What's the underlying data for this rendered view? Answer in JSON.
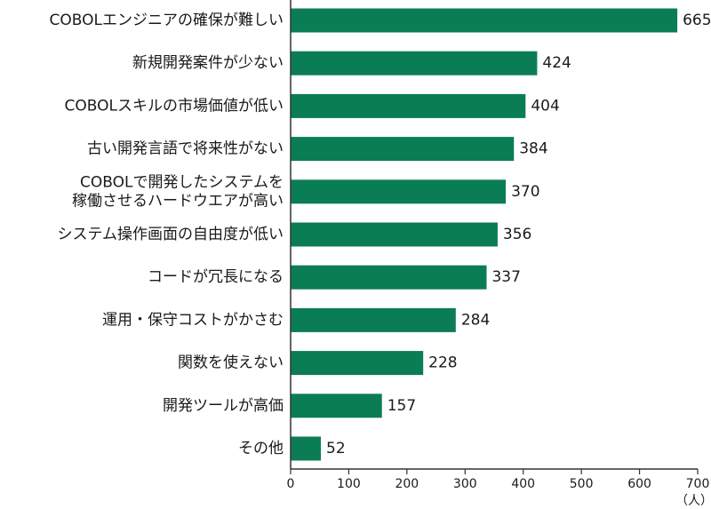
{
  "chart_data": {
    "type": "bar",
    "orientation": "horizontal",
    "categories": [
      [
        "COBOLエンジニアの確保が難しい"
      ],
      [
        "新規開発案件が少ない"
      ],
      [
        "COBOLスキルの市場価値が低い"
      ],
      [
        "古い開発言語で将来性がない"
      ],
      [
        "COBOLで開発したシステムを",
        "稼働させるハードウエアが高い"
      ],
      [
        "システム操作画面の自由度が低い"
      ],
      [
        "コードが冗長になる"
      ],
      [
        "運用・保守コストがかさむ"
      ],
      [
        "関数を使えない"
      ],
      [
        "開発ツールが高価"
      ],
      [
        "その他"
      ]
    ],
    "values": [
      665,
      424,
      404,
      384,
      370,
      356,
      337,
      284,
      228,
      157,
      52
    ],
    "xlim": [
      0,
      700
    ],
    "xticks": [
      0,
      100,
      200,
      300,
      400,
      500,
      600,
      700
    ],
    "unit": "（人）",
    "bar_color": "#0b7d55",
    "grid": false,
    "legend": "none"
  }
}
